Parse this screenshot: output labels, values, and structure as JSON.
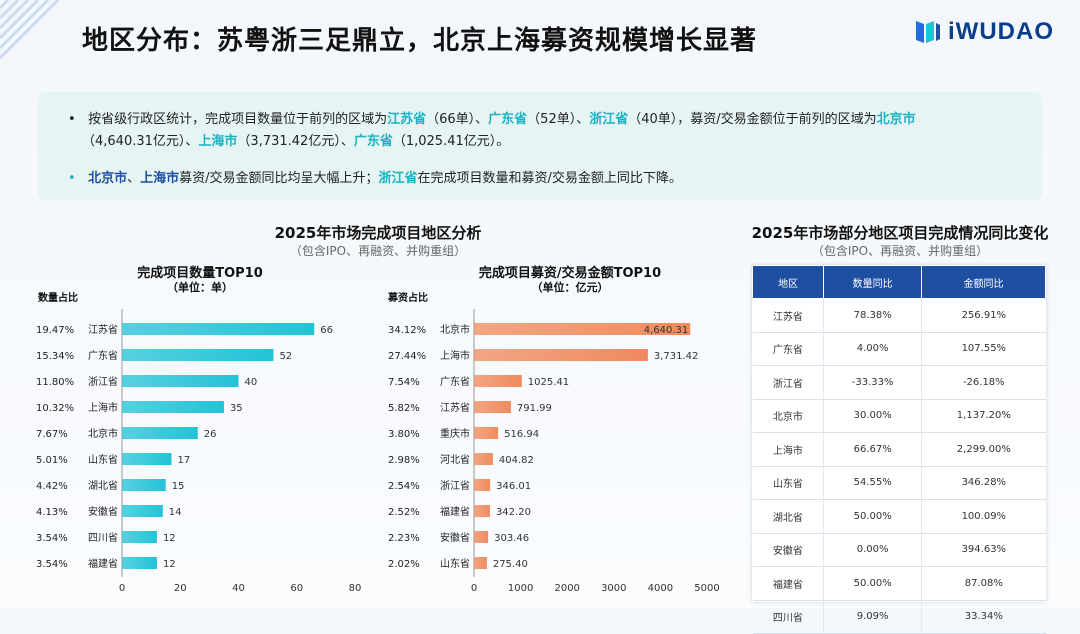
{
  "header": {
    "title": "地区分布：苏粤浙三足鼎立，北京上海募资规模增长显著",
    "logo_text": "iWUDAO"
  },
  "summary": {
    "bullet1": {
      "line1_parts": [
        "按省级行政区统计，完成项目数量位于前列的区域为",
        "江苏省",
        "（66单）、",
        "广东省",
        "（52单）、",
        "浙江省",
        "（40单），募资/交易金额位于前列的区域为",
        "北京市"
      ],
      "line2_parts": [
        "（4,640.31亿元）、",
        "上海市",
        "（3,731.42亿元）、",
        "广东省",
        "（1,025.41亿元）。"
      ]
    },
    "bullet2_parts": [
      "北京市",
      "、",
      "上海市",
      "募资/交易金额同比均呈大幅上升；",
      "浙江省",
      "在完成项目数量和募资/交易金额上同比下降。"
    ]
  },
  "left_section": {
    "title": "2025年市场完成项目地区分析",
    "subtitle": "（包含IPO、再融资、并购重组）"
  },
  "right_section": {
    "title": "2025年市场部分地区项目完成情况同比变化",
    "subtitle": "（包含IPO、再融资、并购重组）"
  },
  "chart_data": [
    {
      "type": "bar",
      "orientation": "horizontal",
      "title": "完成项目数量TOP10",
      "subtitle": "（单位：单）",
      "side_label": "数量占比",
      "categories": [
        "江苏省",
        "广东省",
        "浙江省",
        "上海市",
        "北京市",
        "山东省",
        "湖北省",
        "安徽省",
        "四川省",
        "福建省"
      ],
      "values": [
        66,
        52,
        40,
        35,
        26,
        17,
        15,
        14,
        12,
        12
      ],
      "value_labels": [
        "66",
        "52",
        "40",
        "35",
        "26",
        "17",
        "15",
        "14",
        "12",
        "12"
      ],
      "shares": [
        "19.47%",
        "15.34%",
        "11.80%",
        "10.32%",
        "7.67%",
        "5.01%",
        "4.42%",
        "4.13%",
        "3.54%",
        "3.54%"
      ],
      "xlim": [
        0,
        80
      ],
      "xticks": [
        "0",
        "20",
        "40",
        "60",
        "80"
      ],
      "color": "#22c3d6"
    },
    {
      "type": "bar",
      "orientation": "horizontal",
      "title": "完成项目募资/交易金额TOP10",
      "subtitle": "（单位：亿元）",
      "side_label": "募资占比",
      "categories": [
        "北京市",
        "上海市",
        "广东省",
        "江苏省",
        "重庆市",
        "河北省",
        "浙江省",
        "福建省",
        "安徽省",
        "山东省"
      ],
      "values": [
        4640.31,
        3731.42,
        1025.41,
        791.99,
        516.94,
        404.82,
        346.01,
        342.2,
        303.46,
        275.4
      ],
      "value_labels": [
        "4,640.31",
        "3,731.42",
        "1025.41",
        "791.99",
        "516.94",
        "404.82",
        "346.01",
        "342.20",
        "303.46",
        "275.40"
      ],
      "shares": [
        "34.12%",
        "27.44%",
        "7.54%",
        "5.82%",
        "3.80%",
        "2.98%",
        "2.54%",
        "2.52%",
        "2.23%",
        "2.02%"
      ],
      "xlim": [
        0,
        5000
      ],
      "xticks": [
        "0",
        "1000",
        "2000",
        "3000",
        "4000",
        "5000"
      ],
      "color": "#f08a5d"
    }
  ],
  "yoy_table": {
    "headers": [
      "地区",
      "数量同比",
      "金额同比"
    ],
    "rows": [
      [
        "江苏省",
        "78.38%",
        "256.91%"
      ],
      [
        "广东省",
        "4.00%",
        "107.55%"
      ],
      [
        "浙江省",
        "-33.33%",
        "-26.18%"
      ],
      [
        "北京市",
        "30.00%",
        "1,137.20%"
      ],
      [
        "上海市",
        "66.67%",
        "2,299.00%"
      ],
      [
        "山东省",
        "54.55%",
        "346.28%"
      ],
      [
        "湖北省",
        "50.00%",
        "100.09%"
      ],
      [
        "安徽省",
        "0.00%",
        "394.63%"
      ],
      [
        "福建省",
        "50.00%",
        "87.08%"
      ],
      [
        "四川省",
        "9.09%",
        "33.34%"
      ]
    ]
  }
}
